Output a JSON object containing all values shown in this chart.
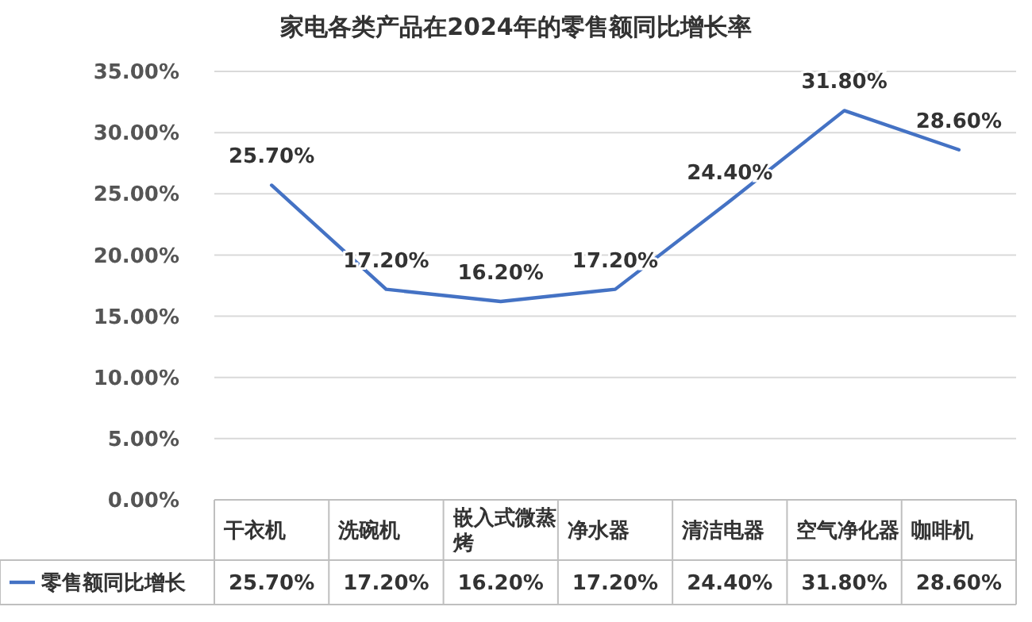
{
  "chart_data": {
    "type": "line",
    "title": "家电各类产品在2024年的零售额同比增长率",
    "categories": [
      "干衣机",
      "洗碗机",
      "嵌入式微蒸烤",
      "净水器",
      "清洁电器",
      "空气净化器",
      "咖啡机"
    ],
    "series": [
      {
        "name": "零售额同比增长",
        "color": "#4472c4",
        "values": [
          25.7,
          17.2,
          16.2,
          17.2,
          24.4,
          31.8,
          28.6
        ],
        "value_labels": [
          "25.70%",
          "17.20%",
          "16.20%",
          "17.20%",
          "24.40%",
          "31.80%",
          "28.60%"
        ]
      }
    ],
    "ylim": [
      0,
      35
    ],
    "yticks": [
      {
        "value": 0,
        "label": "0.00%"
      },
      {
        "value": 5,
        "label": "5.00%"
      },
      {
        "value": 10,
        "label": "10.00%"
      },
      {
        "value": 15,
        "label": "15.00%"
      },
      {
        "value": 20,
        "label": "20.00%"
      },
      {
        "value": 25,
        "label": "25.00%"
      },
      {
        "value": 30,
        "label": "30.00%"
      },
      {
        "value": 35,
        "label": "35.00%"
      }
    ],
    "grid": true,
    "legend": "bottom left",
    "marker": "none",
    "line_style": "solid"
  }
}
